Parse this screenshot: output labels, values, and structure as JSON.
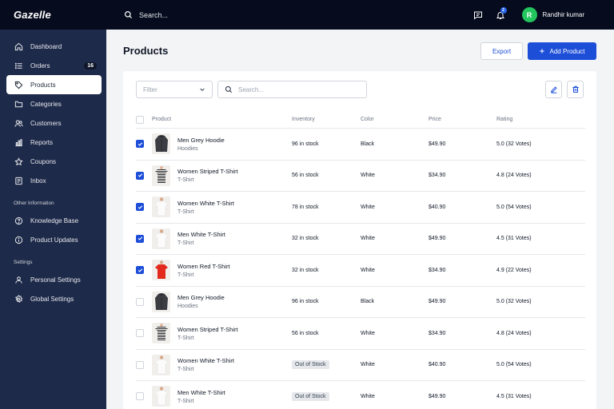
{
  "brand": "Gazelle",
  "topbar": {
    "search_placeholder": "Search...",
    "notification_count": "2",
    "user_initial": "R",
    "user_name": "Randhir kumar"
  },
  "sidebar": {
    "items": [
      {
        "label": "Dashboard",
        "icon": "home-icon"
      },
      {
        "label": "Orders",
        "icon": "list-icon",
        "badge": "16"
      },
      {
        "label": "Products",
        "icon": "tag-icon",
        "active": true
      },
      {
        "label": "Categories",
        "icon": "folder-icon"
      },
      {
        "label": "Customers",
        "icon": "users-icon"
      },
      {
        "label": "Reports",
        "icon": "chart-icon"
      },
      {
        "label": "Coupons",
        "icon": "star-icon"
      },
      {
        "label": "Inbox",
        "icon": "inbox-icon"
      }
    ],
    "other_label": "Other Information",
    "other_items": [
      {
        "label": "Knowledge Base",
        "icon": "help-icon"
      },
      {
        "label": "Product Updates",
        "icon": "info-icon"
      }
    ],
    "settings_label": "Settings",
    "settings_items": [
      {
        "label": "Personal Settings",
        "icon": "user-icon"
      },
      {
        "label": "Global Settings",
        "icon": "gear-icon"
      }
    ]
  },
  "main": {
    "title": "Products",
    "export_label": "Export",
    "add_label": "Add Product",
    "filter_placeholder": "Filter",
    "search_placeholder": "Search...",
    "columns": [
      "Product",
      "Inventory",
      "Color",
      "Price",
      "Rating"
    ],
    "rows": [
      {
        "name": "Men Grey Hoodie",
        "category": "Hoodies",
        "inventory": "96 in stock",
        "color": "Black",
        "price": "$49.90",
        "rating": "5.0 (32 Votes)",
        "checked": true,
        "thumb": "hoodie"
      },
      {
        "name": "Women Striped T-Shirt",
        "category": "T-Shirt",
        "inventory": "56 in stock",
        "color": "White",
        "price": "$34.90",
        "rating": "4.8 (24 Votes)",
        "checked": true,
        "thumb": "striped"
      },
      {
        "name": "Women White T-Shirt",
        "category": "T-Shirt",
        "inventory": "78 in stock",
        "color": "White",
        "price": "$40.90",
        "rating": "5.0 (54 Votes)",
        "checked": true,
        "thumb": "white"
      },
      {
        "name": "Men White T-Shirt",
        "category": "T-Shirt",
        "inventory": "32 in stock",
        "color": "White",
        "price": "$49.90",
        "rating": "4.5 (31 Votes)",
        "checked": true,
        "thumb": "white"
      },
      {
        "name": "Women Red T-Shirt",
        "category": "T-Shirt",
        "inventory": "32 in stock",
        "color": "White",
        "price": "$34.90",
        "rating": "4.9 (22 Votes)",
        "checked": true,
        "thumb": "red"
      },
      {
        "name": "Men Grey Hoodie",
        "category": "Hoodies",
        "inventory": "96 in stock",
        "color": "Black",
        "price": "$49.90",
        "rating": "5.0 (32 Votes)",
        "checked": false,
        "thumb": "hoodie"
      },
      {
        "name": "Women Striped T-Shirt",
        "category": "T-Shirt",
        "inventory": "56 in stock",
        "color": "White",
        "price": "$34.90",
        "rating": "4.8 (24 Votes)",
        "checked": false,
        "thumb": "striped"
      },
      {
        "name": "Women White T-Shirt",
        "category": "T-Shirt",
        "inventory": "Out of Stock",
        "out_of_stock": true,
        "color": "White",
        "price": "$40.90",
        "rating": "5.0 (54 Votes)",
        "checked": false,
        "thumb": "white"
      },
      {
        "name": "Men White T-Shirt",
        "category": "T-Shirt",
        "inventory": "Out of Stock",
        "out_of_stock": true,
        "color": "White",
        "price": "$49.90",
        "rating": "4.5 (31 Votes)",
        "checked": false,
        "thumb": "white"
      }
    ]
  },
  "colors": {
    "sidebar": "#1e2a4a",
    "topbar": "#060b1d",
    "accent": "#1d4ed8",
    "avatar": "#22c55e"
  }
}
